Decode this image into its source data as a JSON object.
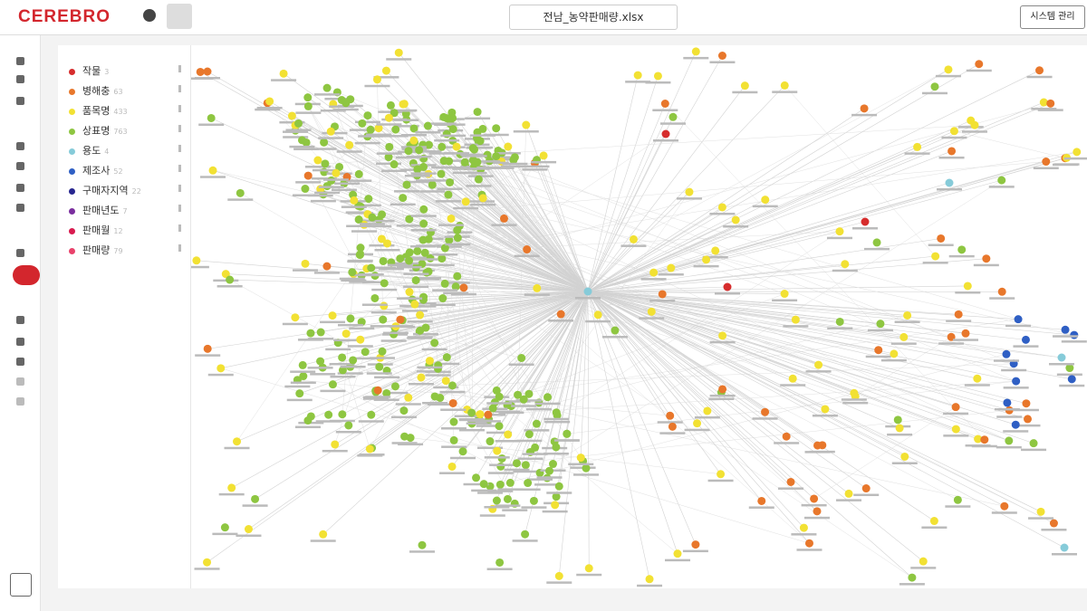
{
  "header": {
    "brand": "CEREBRO",
    "file": "전남_농약판매량.xlsx",
    "admin_button": "시스템 관리"
  },
  "legend": [
    {
      "label": "작물",
      "count": 3,
      "color": "#d62c2c"
    },
    {
      "label": "병해충",
      "count": 63,
      "color": "#e8772b"
    },
    {
      "label": "품목명",
      "count": 433,
      "color": "#f2e133"
    },
    {
      "label": "상표명",
      "count": 763,
      "color": "#8ec641"
    },
    {
      "label": "용도",
      "count": 4,
      "color": "#86cbd9"
    },
    {
      "label": "제조사",
      "count": 52,
      "color": "#2f5fc4"
    },
    {
      "label": "구매자지역",
      "count": 22,
      "color": "#27268f"
    },
    {
      "label": "판매년도",
      "count": 7,
      "color": "#7a2e9e"
    },
    {
      "label": "판매월",
      "count": 12,
      "color": "#d81b4f"
    },
    {
      "label": "판매량",
      "count": 79,
      "color": "#e9426b"
    }
  ]
}
